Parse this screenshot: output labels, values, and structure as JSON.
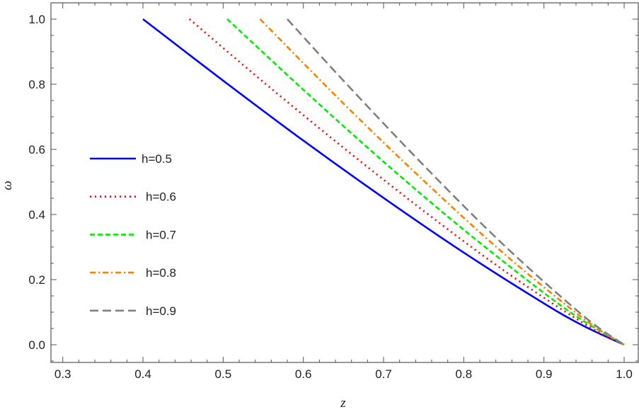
{
  "chart_data": {
    "type": "line",
    "title": "",
    "xlabel": "z",
    "ylabel": "ω",
    "xlim": [
      0.285,
      1.005
    ],
    "ylim": [
      -0.055,
      1.05
    ],
    "xticks": [
      "0.3",
      "0.4",
      "0.5",
      "0.6",
      "0.7",
      "0.8",
      "0.9",
      "1.0"
    ],
    "yticks": [
      "0.0",
      "0.2",
      "0.4",
      "0.6",
      "0.8",
      "1.0"
    ],
    "grid": false,
    "legend_placement": "left-middle",
    "series": [
      {
        "name": "h=0.5",
        "color": "#0000ff",
        "style": "solid",
        "x": [
          0.4,
          0.5,
          0.6,
          0.7,
          0.8,
          0.9,
          0.95,
          1.0
        ],
        "y": [
          1.0,
          0.811,
          0.627,
          0.451,
          0.283,
          0.127,
          0.057,
          0.0
        ]
      },
      {
        "name": "h=0.6",
        "color": "#ff0000",
        "style": "dotted",
        "x": [
          0.458,
          0.55,
          0.65,
          0.75,
          0.85,
          0.95,
          1.0
        ],
        "y": [
          1.0,
          0.807,
          0.605,
          0.411,
          0.228,
          0.065,
          0.0
        ]
      },
      {
        "name": "h=0.7",
        "color": "#00ee00",
        "style": "dashed",
        "x": [
          0.505,
          0.6,
          0.7,
          0.8,
          0.9,
          0.95,
          1.0
        ],
        "y": [
          1.0,
          0.783,
          0.562,
          0.353,
          0.159,
          0.072,
          0.0
        ]
      },
      {
        "name": "h=0.8",
        "color": "#ff8000",
        "style": "dashdot",
        "x": [
          0.546,
          0.65,
          0.75,
          0.85,
          0.95,
          1.0
        ],
        "y": [
          1.0,
          0.741,
          0.504,
          0.28,
          0.079,
          0.0
        ]
      },
      {
        "name": "h=0.9",
        "color": "#808080",
        "style": "longdash",
        "x": [
          0.58,
          0.65,
          0.75,
          0.85,
          0.95,
          1.0
        ],
        "y": [
          1.0,
          0.811,
          0.551,
          0.306,
          0.087,
          0.0
        ]
      }
    ]
  }
}
